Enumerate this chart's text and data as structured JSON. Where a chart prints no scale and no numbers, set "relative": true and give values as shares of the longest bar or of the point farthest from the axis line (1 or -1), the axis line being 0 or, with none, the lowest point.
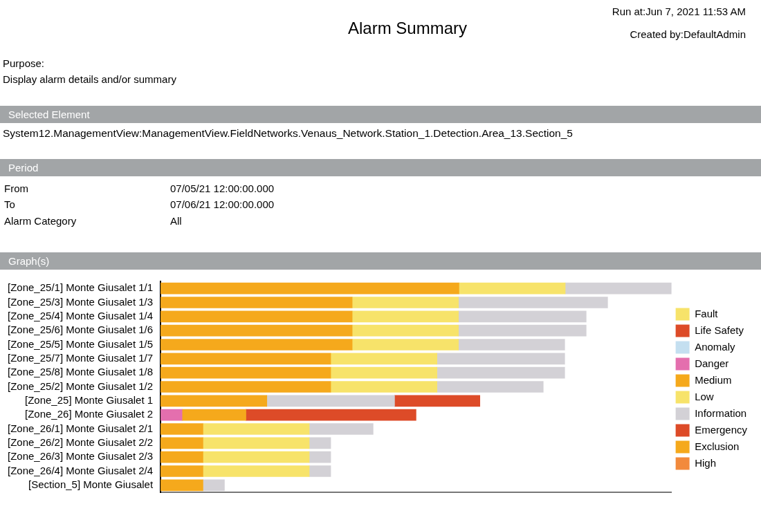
{
  "chart_data": {
    "type": "bar",
    "orientation": "horizontal",
    "stacked": true,
    "relative": true,
    "legend": "right",
    "title": "Alarm Summary",
    "annotations": [
      "Run at:Jun 7, 2021 11:53 AM",
      "Created by:DefaultAdmin",
      "Purpose:",
      "Display alarm details and/or summary",
      "Selected Element",
      "System12.ManagementView:ManagementView.FieldNetworks.Venaus_Network.Station_1.Detection.Area_13.Section_5",
      "Period",
      "From",
      "07/05/21 12:00:00.000",
      "To",
      "07/06/21 12:00:00.000",
      "Alarm Category",
      "All",
      "Graph(s)"
    ],
    "categories": [
      "[Zone_25/1] Monte Giusalet 1/1",
      "[Zone_25/3] Monte Giusalet 1/3",
      "[Zone_25/4] Monte Giusalet 1/4",
      "[Zone_25/6] Monte Giusalet 1/6",
      "[Zone_25/5] Monte Giusalet 1/5",
      "[Zone_25/7] Monte Giusalet 1/7",
      "[Zone_25/8] Monte Giusalet 1/8",
      "[Zone_25/2] Monte Giusalet 1/2",
      "[Zone_25] Monte Giusalet 1",
      "[Zone_26] Monte Giusalet 2",
      "[Zone_26/1] Monte Giusalet 2/1",
      "[Zone_26/2] Monte Giusalet 2/2",
      "[Zone_26/3] Monte Giusalet 2/3",
      "[Zone_26/4] Monte Giusalet 2/4",
      "[Section_5] Monte Giusalet"
    ],
    "series": [
      {
        "name": "Fault",
        "color": "#f7e36a",
        "values": [
          null,
          null,
          null,
          null,
          null,
          null,
          null,
          null,
          null,
          null,
          null,
          null,
          null,
          null,
          null
        ]
      },
      {
        "name": "Life Safety",
        "color": "#dd4b28",
        "values": [
          null,
          null,
          null,
          null,
          null,
          null,
          null,
          null,
          null,
          null,
          null,
          null,
          null,
          null,
          null
        ]
      },
      {
        "name": "Anomaly",
        "color": "#c4dff0",
        "values": [
          null,
          null,
          null,
          null,
          null,
          null,
          null,
          null,
          null,
          null,
          null,
          null,
          null,
          null,
          null
        ]
      },
      {
        "name": "Danger",
        "color": "#e46fae",
        "values": [
          null,
          null,
          null,
          null,
          null,
          null,
          null,
          null,
          null,
          0.042,
          null,
          null,
          null,
          null,
          null
        ]
      },
      {
        "name": "Medium",
        "color": "#f5a91c",
        "values": [
          0.584,
          0.375,
          0.375,
          0.375,
          0.375,
          0.333,
          0.333,
          0.333,
          0.208,
          0.125,
          0.083,
          0.083,
          0.083,
          0.083,
          0.083
        ]
      },
      {
        "name": "Low",
        "color": "#f7e36a",
        "values": [
          0.208,
          0.208,
          0.208,
          0.208,
          0.208,
          0.208,
          0.208,
          0.208,
          null,
          null,
          0.208,
          0.208,
          0.208,
          0.208,
          null
        ]
      },
      {
        "name": "Information",
        "color": "#d3d1d6",
        "values": [
          0.208,
          0.292,
          0.25,
          0.25,
          0.208,
          0.25,
          0.25,
          0.208,
          0.25,
          null,
          0.125,
          0.042,
          0.042,
          0.042,
          0.042
        ]
      },
      {
        "name": "Emergency",
        "color": "#dd4b28",
        "values": [
          null,
          null,
          null,
          null,
          null,
          null,
          null,
          null,
          0.167,
          0.333,
          null,
          null,
          null,
          null,
          null
        ]
      },
      {
        "name": "Exclusion",
        "color": "#f5a91c",
        "values": [
          null,
          null,
          null,
          null,
          null,
          null,
          null,
          null,
          null,
          null,
          null,
          null,
          null,
          null,
          null
        ]
      },
      {
        "name": "High",
        "color": "#f28a3c",
        "values": [
          null,
          null,
          null,
          null,
          null,
          null,
          null,
          null,
          null,
          null,
          null,
          null,
          null,
          null,
          null
        ]
      }
    ]
  }
}
